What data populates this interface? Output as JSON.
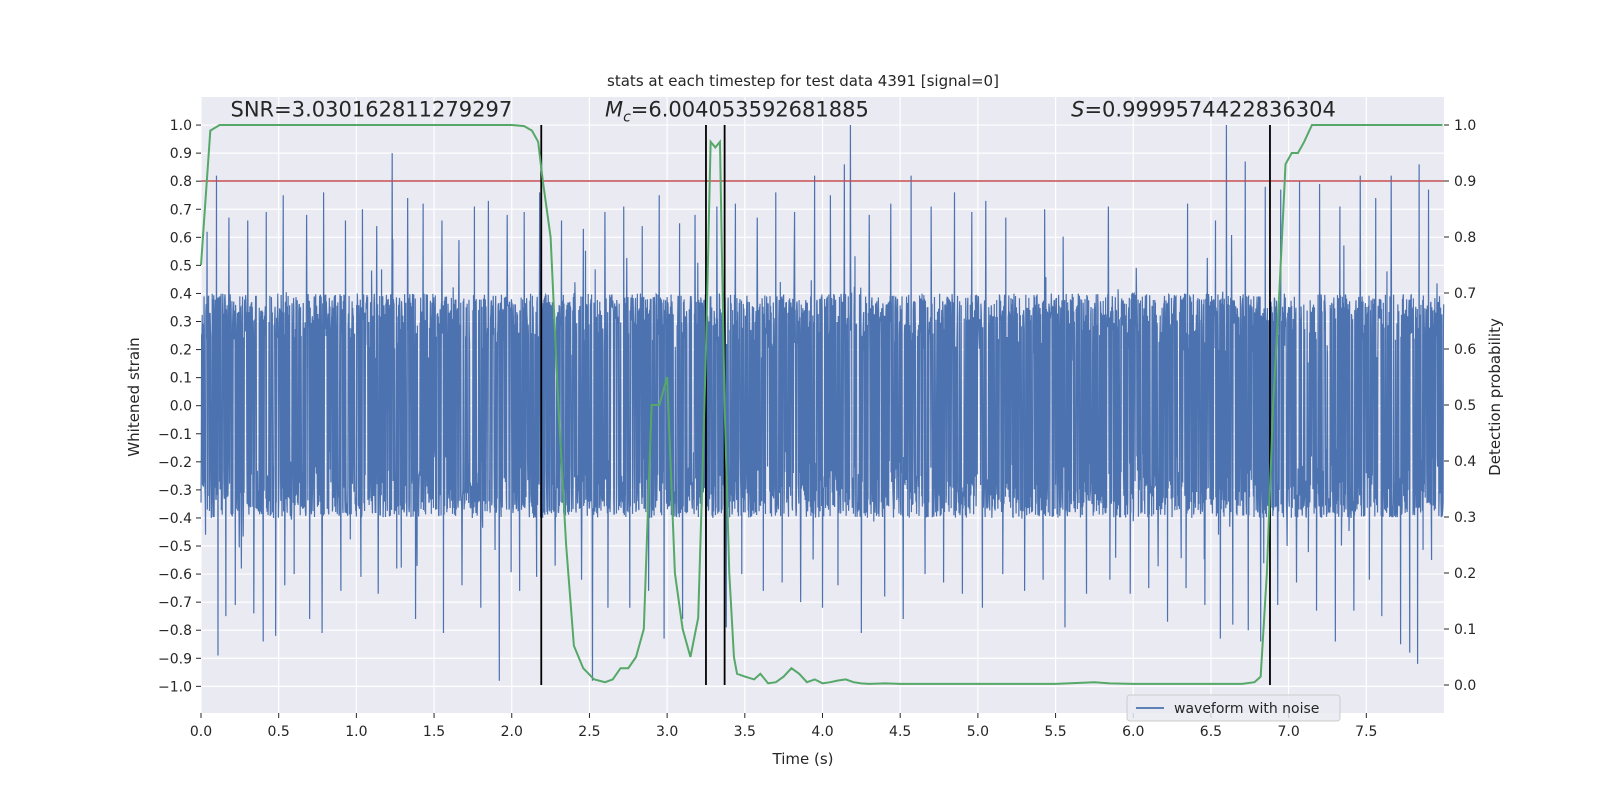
{
  "chart_data": {
    "type": "line",
    "title": "stats at each timestep for test data 4391 [signal=0]",
    "xlabel": "Time (s)",
    "ylabel": "Whitened strain",
    "y2label": "Detection probability",
    "xlim": [
      0,
      8.0
    ],
    "ylim": [
      -1.095,
      1.1
    ],
    "y2lim": [
      -0.05,
      1.05
    ],
    "xticks": [
      0.0,
      0.5,
      1.0,
      1.5,
      2.0,
      2.5,
      3.0,
      3.5,
      4.0,
      4.5,
      5.0,
      5.5,
      6.0,
      6.5,
      7.0,
      7.5
    ],
    "xtick_labels": [
      "0.0",
      "0.5",
      "1.0",
      "1.5",
      "2.0",
      "2.5",
      "3.0",
      "3.5",
      "4.0",
      "4.5",
      "5.0",
      "5.5",
      "6.0",
      "6.5",
      "7.0",
      "7.5"
    ],
    "yticks": [
      1.0,
      0.9,
      0.8,
      0.7,
      0.6,
      0.5,
      0.4,
      0.3,
      0.2,
      0.1,
      0.0,
      -0.1,
      -0.2,
      -0.3,
      -0.4,
      -0.5,
      -0.6,
      -0.7,
      -0.8,
      -0.9,
      -1.0
    ],
    "ytick_labels": [
      "1.0",
      "0.9",
      "0.8",
      "0.7",
      "0.6",
      "0.5",
      "0.4",
      "0.3",
      "0.2",
      "0.1",
      "0.0",
      "−0.1",
      "−0.2",
      "−0.3",
      "−0.4",
      "−0.5",
      "−0.6",
      "−0.7",
      "−0.8",
      "−0.9",
      "−1.0"
    ],
    "y2ticks": [
      1.0,
      0.9,
      0.8,
      0.7,
      0.6,
      0.5,
      0.4,
      0.3,
      0.2,
      0.1,
      0.0
    ],
    "y2tick_labels": [
      "1.0",
      "0.9",
      "0.8",
      "0.7",
      "0.6",
      "0.5",
      "0.4",
      "0.3",
      "0.2",
      "0.1",
      "0.0"
    ],
    "annotations": [
      {
        "text": "SNR=3.030162811279297",
        "x": 0.19,
        "y": 1.03
      },
      {
        "text_parts": [
          "M",
          "c",
          "=6.004053592681885"
        ],
        "x": 2.6,
        "y": 1.03
      },
      {
        "text_parts": [
          "S",
          "=0.9999574422836304"
        ],
        "x": 5.6,
        "y": 1.03
      }
    ],
    "grid": true,
    "legend": {
      "position": "bottom-right",
      "entries": [
        "waveform with noise"
      ]
    },
    "series": [
      {
        "name": "waveform with noise",
        "kind": "noise-strain",
        "color": "#4c72b0",
        "sample_rate_hz": 512,
        "core_envelope": 0.4,
        "peaks": [
          {
            "x": 0.04,
            "y": 0.62
          },
          {
            "x": 0.1,
            "y": 0.82
          },
          {
            "x": 0.18,
            "y": 0.67
          },
          {
            "x": 0.3,
            "y": 0.66
          },
          {
            "x": 0.42,
            "y": 0.69
          },
          {
            "x": 0.53,
            "y": 0.75
          },
          {
            "x": 0.68,
            "y": 0.68
          },
          {
            "x": 0.79,
            "y": 0.76
          },
          {
            "x": 0.93,
            "y": 0.66
          },
          {
            "x": 1.04,
            "y": 0.7
          },
          {
            "x": 1.13,
            "y": 0.64
          },
          {
            "x": 1.23,
            "y": 0.9
          },
          {
            "x": 1.33,
            "y": 0.74
          },
          {
            "x": 1.43,
            "y": 0.72
          },
          {
            "x": 1.55,
            "y": 0.66
          },
          {
            "x": 1.66,
            "y": 0.59
          },
          {
            "x": 1.76,
            "y": 0.71
          },
          {
            "x": 1.85,
            "y": 0.73
          },
          {
            "x": 1.97,
            "y": 0.68
          },
          {
            "x": 2.08,
            "y": 0.69
          },
          {
            "x": 2.18,
            "y": 0.76
          },
          {
            "x": 2.32,
            "y": 0.66
          },
          {
            "x": 2.46,
            "y": 0.63
          },
          {
            "x": 2.6,
            "y": 0.69
          },
          {
            "x": 2.72,
            "y": 0.71
          },
          {
            "x": 2.84,
            "y": 0.64
          },
          {
            "x": 2.95,
            "y": 0.75
          },
          {
            "x": 3.08,
            "y": 0.65
          },
          {
            "x": 3.18,
            "y": 0.68
          },
          {
            "x": 3.32,
            "y": 0.71
          },
          {
            "x": 3.44,
            "y": 0.72
          },
          {
            "x": 3.58,
            "y": 0.67
          },
          {
            "x": 3.7,
            "y": 0.76
          },
          {
            "x": 3.82,
            "y": 0.69
          },
          {
            "x": 3.95,
            "y": 0.82
          },
          {
            "x": 4.05,
            "y": 0.75
          },
          {
            "x": 4.14,
            "y": 0.86
          },
          {
            "x": 4.18,
            "y": 1.0
          },
          {
            "x": 4.3,
            "y": 0.68
          },
          {
            "x": 4.44,
            "y": 0.72
          },
          {
            "x": 4.57,
            "y": 0.82
          },
          {
            "x": 4.7,
            "y": 0.71
          },
          {
            "x": 4.85,
            "y": 0.76
          },
          {
            "x": 4.96,
            "y": 0.69
          },
          {
            "x": 5.05,
            "y": 0.73
          },
          {
            "x": 5.18,
            "y": 0.67
          },
          {
            "x": 5.3,
            "y": 0.81
          },
          {
            "x": 5.43,
            "y": 0.7
          },
          {
            "x": 5.56,
            "y": 0.69
          },
          {
            "x": 5.7,
            "y": 0.8
          },
          {
            "x": 5.84,
            "y": 0.71
          },
          {
            "x": 5.98,
            "y": 0.72
          },
          {
            "x": 6.1,
            "y": 0.7
          },
          {
            "x": 6.22,
            "y": 0.74
          },
          {
            "x": 6.35,
            "y": 0.72
          },
          {
            "x": 6.46,
            "y": 0.8
          },
          {
            "x": 6.53,
            "y": 0.66
          },
          {
            "x": 6.6,
            "y": 1.0
          },
          {
            "x": 6.72,
            "y": 0.87
          },
          {
            "x": 6.85,
            "y": 0.78
          },
          {
            "x": 6.95,
            "y": 0.77
          },
          {
            "x": 7.07,
            "y": 0.8
          },
          {
            "x": 7.2,
            "y": 0.79
          },
          {
            "x": 7.33,
            "y": 0.71
          },
          {
            "x": 7.46,
            "y": 0.82
          },
          {
            "x": 7.56,
            "y": 0.74
          },
          {
            "x": 7.66,
            "y": 0.82
          },
          {
            "x": 7.78,
            "y": 0.9
          },
          {
            "x": 7.84,
            "y": 0.86
          },
          {
            "x": 7.9,
            "y": 0.77
          }
        ],
        "troughs": [
          {
            "x": 0.03,
            "y": -0.46
          },
          {
            "x": 0.11,
            "y": -0.89
          },
          {
            "x": 0.16,
            "y": -0.75
          },
          {
            "x": 0.22,
            "y": -0.71
          },
          {
            "x": 0.26,
            "y": -0.58
          },
          {
            "x": 0.34,
            "y": -0.74
          },
          {
            "x": 0.4,
            "y": -0.84
          },
          {
            "x": 0.48,
            "y": -0.82
          },
          {
            "x": 0.54,
            "y": -0.64
          },
          {
            "x": 0.6,
            "y": -0.6
          },
          {
            "x": 0.7,
            "y": -0.76
          },
          {
            "x": 0.78,
            "y": -0.81
          },
          {
            "x": 0.9,
            "y": -0.66
          },
          {
            "x": 1.03,
            "y": -0.61
          },
          {
            "x": 1.14,
            "y": -0.67
          },
          {
            "x": 1.26,
            "y": -0.58
          },
          {
            "x": 1.38,
            "y": -0.76
          },
          {
            "x": 1.56,
            "y": -0.81
          },
          {
            "x": 1.68,
            "y": -0.64
          },
          {
            "x": 1.8,
            "y": -0.72
          },
          {
            "x": 1.92,
            "y": -0.98
          },
          {
            "x": 2.05,
            "y": -0.66
          },
          {
            "x": 2.16,
            "y": -0.61
          },
          {
            "x": 2.28,
            "y": -0.57
          },
          {
            "x": 2.45,
            "y": -0.62
          },
          {
            "x": 2.52,
            "y": -0.98
          },
          {
            "x": 2.62,
            "y": -0.72
          },
          {
            "x": 2.76,
            "y": -0.72
          },
          {
            "x": 2.88,
            "y": -0.66
          },
          {
            "x": 2.98,
            "y": -0.83
          },
          {
            "x": 3.1,
            "y": -0.76
          },
          {
            "x": 3.25,
            "y": -0.7
          },
          {
            "x": 3.38,
            "y": -0.79
          },
          {
            "x": 3.48,
            "y": -0.6
          },
          {
            "x": 3.62,
            "y": -0.66
          },
          {
            "x": 3.74,
            "y": -0.63
          },
          {
            "x": 3.86,
            "y": -0.7
          },
          {
            "x": 4.0,
            "y": -0.72
          },
          {
            "x": 4.1,
            "y": -0.64
          },
          {
            "x": 4.25,
            "y": -0.81
          },
          {
            "x": 4.4,
            "y": -0.68
          },
          {
            "x": 4.52,
            "y": -0.76
          },
          {
            "x": 4.66,
            "y": -0.6
          },
          {
            "x": 4.78,
            "y": -0.63
          },
          {
            "x": 4.9,
            "y": -0.67
          },
          {
            "x": 5.03,
            "y": -0.72
          },
          {
            "x": 5.16,
            "y": -0.6
          },
          {
            "x": 5.3,
            "y": -0.66
          },
          {
            "x": 5.42,
            "y": -0.62
          },
          {
            "x": 5.56,
            "y": -0.79
          },
          {
            "x": 5.7,
            "y": -0.67
          },
          {
            "x": 5.85,
            "y": -0.62
          },
          {
            "x": 5.98,
            "y": -0.67
          },
          {
            "x": 6.1,
            "y": -0.65
          },
          {
            "x": 6.22,
            "y": -0.77
          },
          {
            "x": 6.34,
            "y": -0.65
          },
          {
            "x": 6.46,
            "y": -0.71
          },
          {
            "x": 6.56,
            "y": -0.83
          },
          {
            "x": 6.64,
            "y": -0.78
          },
          {
            "x": 6.74,
            "y": -0.8
          },
          {
            "x": 6.82,
            "y": -0.84
          },
          {
            "x": 6.93,
            "y": -0.71
          },
          {
            "x": 7.05,
            "y": -0.63
          },
          {
            "x": 7.18,
            "y": -0.73
          },
          {
            "x": 7.3,
            "y": -0.84
          },
          {
            "x": 7.42,
            "y": -0.73
          },
          {
            "x": 7.52,
            "y": -0.62
          },
          {
            "x": 7.6,
            "y": -0.75
          },
          {
            "x": 7.72,
            "y": -0.85
          },
          {
            "x": 7.78,
            "y": -0.88
          },
          {
            "x": 7.83,
            "y": -0.92
          },
          {
            "x": 7.92,
            "y": -0.55
          }
        ]
      },
      {
        "name": "",
        "kind": "detection-probability",
        "axis": "right",
        "color": "#55a868",
        "x": [
          0.0,
          0.06,
          0.12,
          0.5,
          1.0,
          1.5,
          2.0,
          2.08,
          2.13,
          2.17,
          2.2,
          2.25,
          2.3,
          2.35,
          2.4,
          2.46,
          2.53,
          2.6,
          2.65,
          2.7,
          2.75,
          2.8,
          2.85,
          2.9,
          2.95,
          3.0,
          3.05,
          3.1,
          3.15,
          3.2,
          3.23,
          3.25,
          3.28,
          3.31,
          3.34,
          3.37,
          3.4,
          3.43,
          3.45,
          3.5,
          3.56,
          3.6,
          3.65,
          3.7,
          3.75,
          3.8,
          3.85,
          3.9,
          3.95,
          4.0,
          4.05,
          4.1,
          4.15,
          4.2,
          4.25,
          4.3,
          4.4,
          4.5,
          4.6,
          4.8,
          5.0,
          5.5,
          5.75,
          5.85,
          6.0,
          6.5,
          6.7,
          6.78,
          6.82,
          6.86,
          6.9,
          6.94,
          6.98,
          7.02,
          7.06,
          7.1,
          7.15,
          7.25,
          7.5,
          7.99
        ],
        "y": [
          0.75,
          0.99,
          1.0,
          1.0,
          1.0,
          1.0,
          1.0,
          0.998,
          0.99,
          0.97,
          0.9,
          0.8,
          0.5,
          0.25,
          0.07,
          0.03,
          0.01,
          0.005,
          0.01,
          0.03,
          0.03,
          0.05,
          0.1,
          0.5,
          0.5,
          0.55,
          0.2,
          0.1,
          0.05,
          0.12,
          0.4,
          0.6,
          0.97,
          0.96,
          0.97,
          0.5,
          0.2,
          0.05,
          0.02,
          0.015,
          0.01,
          0.02,
          0.003,
          0.005,
          0.015,
          0.03,
          0.02,
          0.005,
          0.01,
          0.003,
          0.005,
          0.008,
          0.01,
          0.005,
          0.003,
          0.002,
          0.003,
          0.002,
          0.002,
          0.002,
          0.002,
          0.002,
          0.005,
          0.003,
          0.002,
          0.002,
          0.002,
          0.005,
          0.015,
          0.2,
          0.5,
          0.7,
          0.93,
          0.95,
          0.95,
          0.97,
          1.0,
          1.0,
          1.0,
          1.0
        ]
      },
      {
        "name": "",
        "kind": "threshold",
        "axis": "right",
        "color": "#c44e52",
        "y": 0.9
      },
      {
        "name": "",
        "kind": "vlines",
        "color": "#000000",
        "x": [
          2.19,
          3.25,
          3.37,
          6.88
        ],
        "ymin": 0.0,
        "ymax": 1.0
      }
    ]
  }
}
